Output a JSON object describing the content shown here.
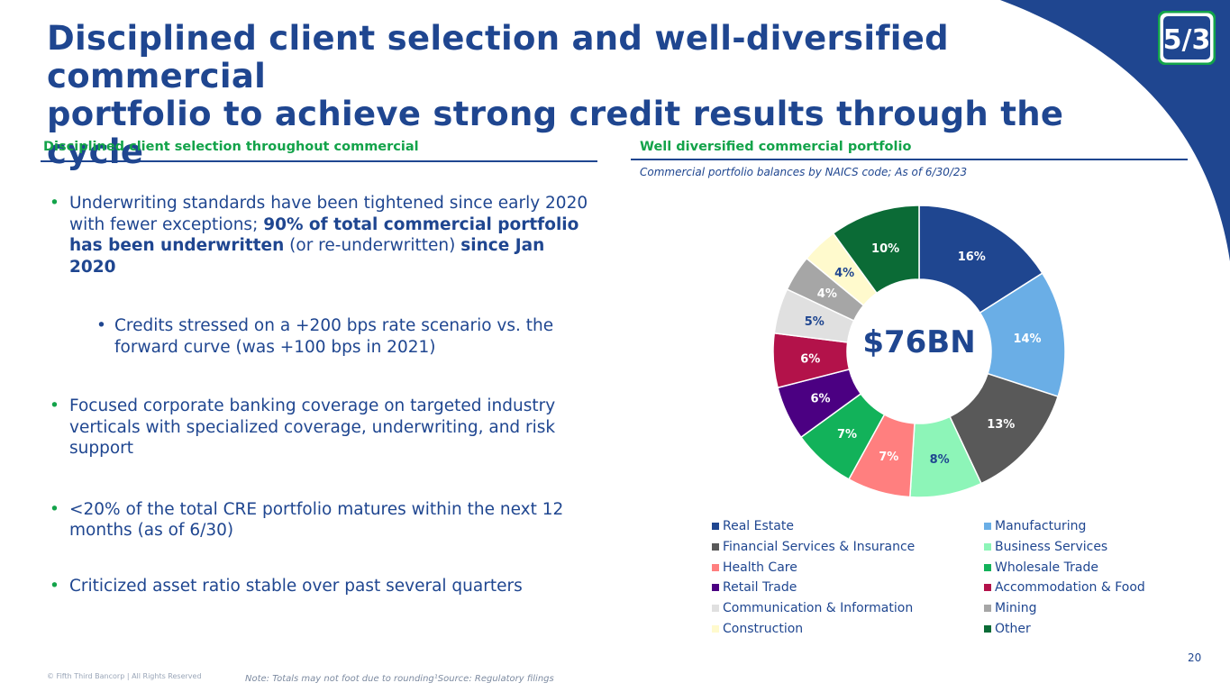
{
  "header": {
    "title_line1": "Disciplined client selection and well-diversified commercial",
    "title_line2": "portfolio to achieve strong credit results through the cycle"
  },
  "brand": {
    "primary": "#1f4690",
    "accent": "#13a34a",
    "logo_text": "5/3"
  },
  "left": {
    "heading": "Disciplined client selection throughout commercial",
    "bullets": {
      "b1_a": "Underwriting standards have been tightened since early 2020 with fewer exceptions; ",
      "b1_bold1": "90% of total commercial portfolio has been underwritten",
      "b1_b": " (or re-underwritten) ",
      "b1_bold2": "since Jan 2020",
      "sub1": "Credits stressed on a +200 bps rate scenario vs. the forward curve (was +100 bps in 2021)",
      "b2": "Focused corporate banking coverage on targeted industry verticals with specialized coverage, underwriting, and risk support",
      "b3": "<20% of the total CRE portfolio matures within the next 12 months (as of 6/30)",
      "b4": "Criticized asset ratio stable over past several quarters"
    }
  },
  "right": {
    "heading": "Well diversified commercial portfolio",
    "subtitle": "Commercial portfolio balances by NAICS code; As of 6/30/23",
    "center_label": "$76BN"
  },
  "chart_data": {
    "type": "pie",
    "donut": true,
    "title": "",
    "center_label": "$76BN",
    "legend_position": "bottom",
    "categories": [
      "Real Estate",
      "Manufacturing",
      "Financial Services & Insurance",
      "Business Services",
      "Health Care",
      "Wholesale Trade",
      "Retail Trade",
      "Accommodation & Food",
      "Communication & Information",
      "Mining",
      "Construction",
      "Other"
    ],
    "values": [
      16,
      14,
      13,
      8,
      7,
      7,
      6,
      6,
      5,
      4,
      4,
      10
    ],
    "labels": [
      "16%",
      "14%",
      "13%",
      "8%",
      "7%",
      "7%",
      "6%",
      "6%",
      "5%",
      "4%",
      "4%",
      "10%"
    ],
    "colors": [
      "#1f4690",
      "#6aaee6",
      "#595959",
      "#8df5b8",
      "#ff7f7f",
      "#12b25a",
      "#4b0082",
      "#b3124a",
      "#e0e0e0",
      "#a6a6a6",
      "#fffacd",
      "#0b6b36"
    ],
    "label_colors": [
      "#ffffff",
      "#ffffff",
      "#ffffff",
      "#1f4690",
      "#ffffff",
      "#ffffff",
      "#ffffff",
      "#ffffff",
      "#1f4690",
      "#ffffff",
      "#1f4690",
      "#ffffff"
    ]
  },
  "footer": {
    "copyright": "© Fifth Third Bancorp | All Rights Reserved",
    "note": "Note: Totals may not foot due to rounding¹Source: Regulatory filings",
    "page": "20"
  }
}
